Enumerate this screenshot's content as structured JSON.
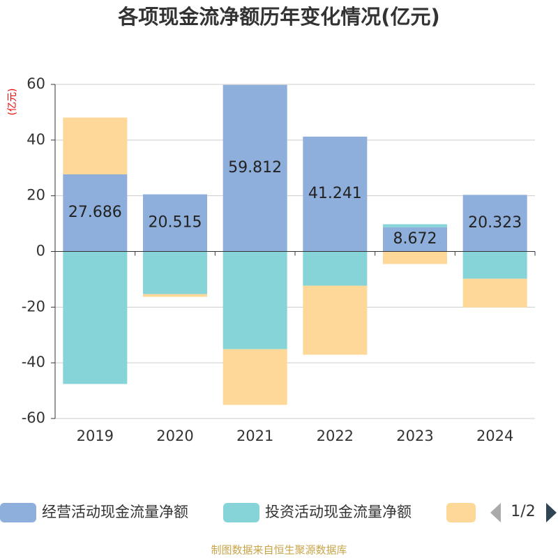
{
  "chart_data": {
    "type": "bar",
    "stacked": true,
    "title": "各项现金流净额历年变化情况(亿元)",
    "y_label": "(亿元)",
    "categories": [
      "2019",
      "2020",
      "2021",
      "2022",
      "2023",
      "2024"
    ],
    "series": [
      {
        "name": "经营活动现金流量净额",
        "color": "#8eaedb",
        "values": [
          27.686,
          20.515,
          59.812,
          41.241,
          8.672,
          20.323
        ],
        "show_labels": true
      },
      {
        "name": "投资活动现金流量净额",
        "color": "#86d4d8",
        "values": [
          -47.6,
          -15.3,
          -35.1,
          -12.3,
          1.1,
          -9.8
        ]
      },
      {
        "color": "#fdd898",
        "values": [
          20.4,
          -1.0,
          -20.0,
          -24.8,
          -4.5,
          -10.3
        ]
      }
    ],
    "ylim": [
      -60,
      60
    ],
    "yticks": [
      -60,
      -40,
      -20,
      0,
      20,
      40,
      60
    ],
    "grid": true,
    "legend_page": "1/2",
    "source": "制图数据来自恒生聚源数据库"
  }
}
